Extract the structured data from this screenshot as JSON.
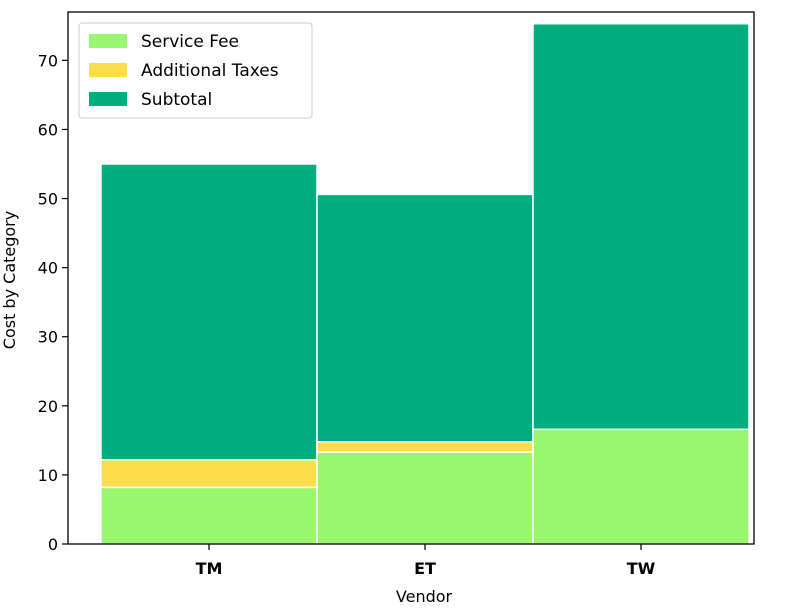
{
  "chart_data": {
    "type": "bar",
    "stacked": true,
    "categories": [
      "TM",
      "ET",
      "TW"
    ],
    "series": [
      {
        "name": "Service Fee",
        "color": "#99f76f",
        "values": [
          8.2,
          13.3,
          16.6
        ]
      },
      {
        "name": "Additional Taxes",
        "color": "#fddc4b",
        "values": [
          4.0,
          1.5,
          0.0
        ]
      },
      {
        "name": "Subtotal",
        "color": "#00ad7f",
        "values": [
          42.8,
          35.8,
          58.7
        ]
      }
    ],
    "xlabel": "Vendor",
    "ylabel": "Cost by Category",
    "ylim": [
      0,
      77
    ],
    "yticks": [
      "0",
      "10",
      "20",
      "30",
      "40",
      "50",
      "60",
      "70"
    ],
    "grid": false,
    "legend_position": "top-left"
  }
}
